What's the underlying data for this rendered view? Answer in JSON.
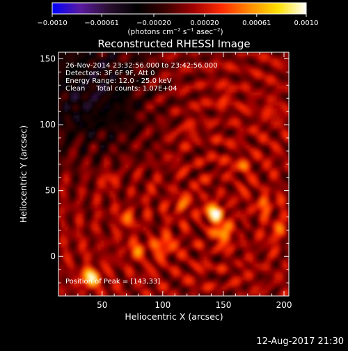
{
  "colorbar": {
    "ticks": [
      "−0.0010",
      "−0.00061",
      "−0.00020",
      "0.00020",
      "0.00061",
      "0.0010"
    ],
    "tick_values": [
      -0.001,
      -0.00061,
      -0.0002,
      0.0002,
      0.00061,
      0.001
    ],
    "range": [
      -0.001,
      0.001
    ],
    "colormap": [
      "#0000ff",
      "#5a1aa0",
      "#2a0f30",
      "#000000",
      "#3a0000",
      "#a00000",
      "#ff2a00",
      "#ff8a00",
      "#ffe000",
      "#ffffff"
    ],
    "units_main": "(photons cm",
    "units_exp1": "−2",
    "units_mid": " s",
    "units_exp2": "−1",
    "units_mid2": " asec",
    "units_exp3": "−2",
    "units_close": ")"
  },
  "chart_data": {
    "type": "heatmap",
    "title": "Reconstructed RHESSI Image",
    "xlabel": "Heliocentric X (arcsec)",
    "ylabel": "Heliocentric Y (arcsec)",
    "xlim": [
      14,
      204
    ],
    "ylim": [
      -30,
      155
    ],
    "x_ticks": [
      50,
      100,
      150,
      200
    ],
    "y_ticks": [
      0,
      50,
      100,
      150
    ],
    "annotations": [
      "26-Nov-2014 23:32:56.000 to 23:42:56.000",
      "Detectors: 3F 6F 9F, Att 0",
      "Energy Range: 12.0 - 25.0 keV",
      "Clean     Total counts: 1.07E+04"
    ],
    "peak_label": "Position of Peak = [143,33]",
    "peak": [
      143,
      33
    ],
    "hotspots": [
      {
        "x": 143,
        "y": 33,
        "value": 0.00095
      },
      {
        "x": 40,
        "y": -16,
        "value": 0.00085
      },
      {
        "x": 150,
        "y": 18,
        "value": 0.0006
      },
      {
        "x": 100,
        "y": 8,
        "value": 0.0005
      },
      {
        "x": 115,
        "y": 40,
        "value": 0.0004
      },
      {
        "x": 70,
        "y": 30,
        "value": 0.00035
      },
      {
        "x": 185,
        "y": 40,
        "value": 0.0004
      },
      {
        "x": 165,
        "y": 70,
        "value": 0.0003
      },
      {
        "x": 55,
        "y": 60,
        "value": 0.0003
      },
      {
        "x": 190,
        "y": 110,
        "value": 0.00025
      },
      {
        "x": 150,
        "y": 120,
        "value": 0.00022
      },
      {
        "x": 120,
        "y": 95,
        "value": 0.00022
      },
      {
        "x": 80,
        "y": 5,
        "value": 0.00035
      },
      {
        "x": 195,
        "y": 20,
        "value": 0.0003
      }
    ],
    "negative_region": {
      "x": 40,
      "y": 125,
      "value": -0.0006
    }
  },
  "footer": {
    "timestamp": "12-Aug-2017 21:30"
  }
}
